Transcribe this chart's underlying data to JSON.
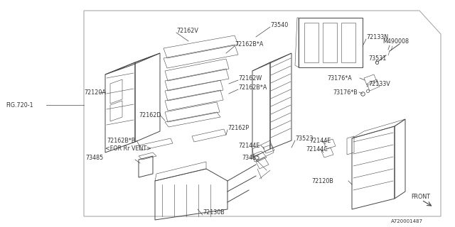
{
  "bg_color": "#ffffff",
  "border_color": "#aaaaaa",
  "line_color": "#444444",
  "text_color": "#333333",
  "title": "A720001487",
  "fig_label": "FIG.720-1",
  "front_label": "FRONT"
}
